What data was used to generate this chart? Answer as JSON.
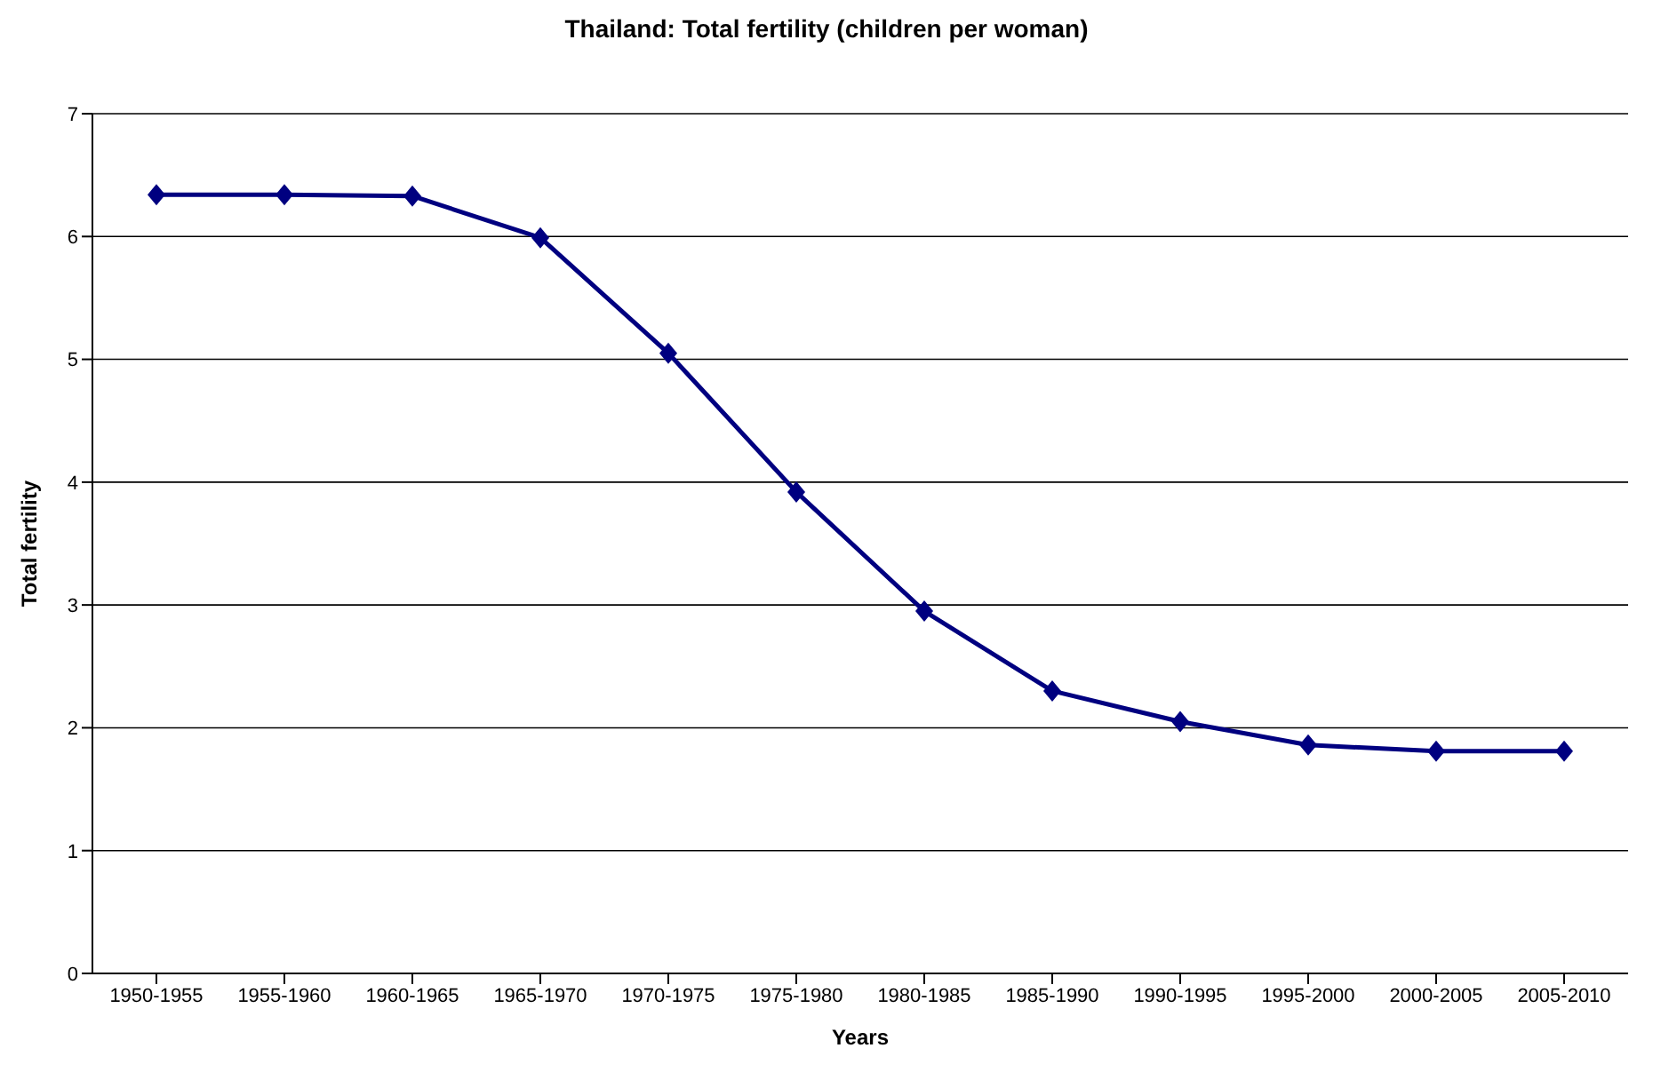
{
  "chart_data": {
    "type": "line",
    "title": "Thailand: Total fertility (children per woman)",
    "xlabel": "Years",
    "ylabel": "Total fertility",
    "categories": [
      "1950-1955",
      "1955-1960",
      "1960-1965",
      "1965-1970",
      "1970-1975",
      "1975-1980",
      "1980-1985",
      "1985-1990",
      "1990-1995",
      "1995-2000",
      "2000-2005",
      "2005-2010"
    ],
    "series": [
      {
        "color": "#000080",
        "values": [
          6.34,
          6.34,
          6.33,
          5.99,
          5.05,
          3.92,
          2.95,
          2.3,
          2.05,
          1.86,
          1.81,
          1.81
        ]
      }
    ],
    "ylim": [
      0,
      7
    ],
    "yticks": [
      0,
      1,
      2,
      3,
      4,
      5,
      6,
      7
    ],
    "grid": "y",
    "legend": false,
    "marker": "diamond",
    "line_style": "solid"
  }
}
